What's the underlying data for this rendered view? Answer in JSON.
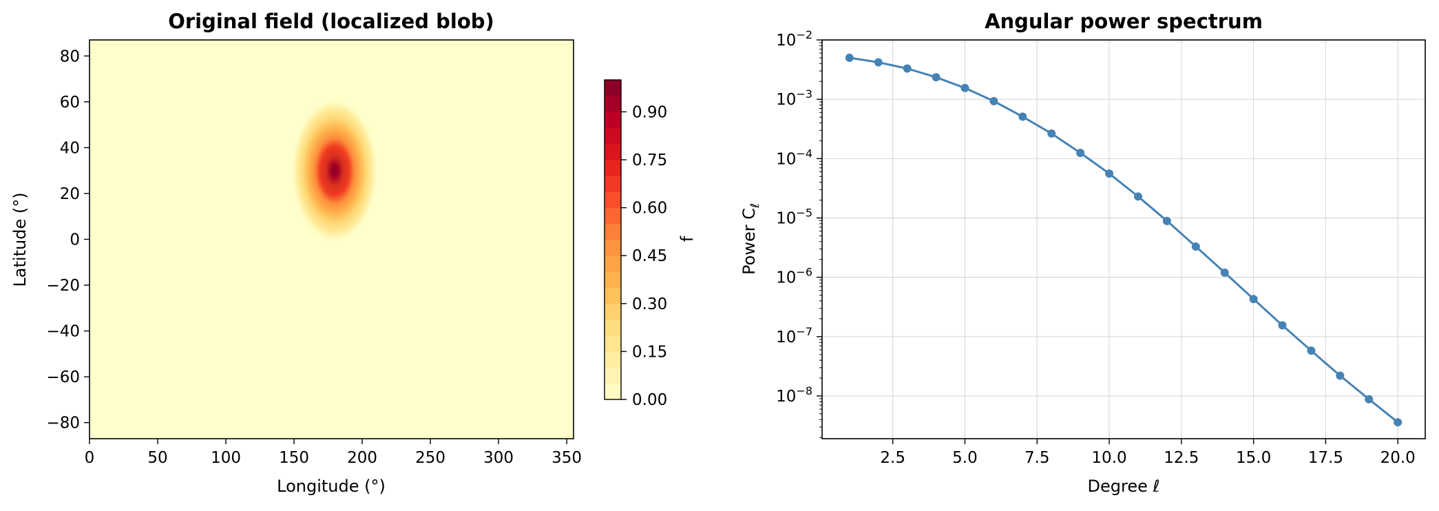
{
  "chart_data": [
    {
      "type": "heatmap",
      "title": "Original field (localized blob)",
      "xlabel": "Longitude (°)",
      "ylabel": "Latitude (°)",
      "xlim": [
        0,
        355
      ],
      "ylim": [
        -87,
        87
      ],
      "xticks": [
        0,
        50,
        100,
        150,
        200,
        250,
        300,
        350
      ],
      "xtick_labels": [
        "0",
        "50",
        "100",
        "150",
        "200",
        "250",
        "300",
        "350"
      ],
      "yticks": [
        -80,
        -60,
        -40,
        -20,
        0,
        20,
        40,
        60,
        80
      ],
      "ytick_labels": [
        "−80",
        "−60",
        "−40",
        "−20",
        "0",
        "20",
        "40",
        "60",
        "80"
      ],
      "blob": {
        "center_lon": 180,
        "center_lat": 30,
        "peak": 1.0,
        "sigma_deg": 17,
        "description_visible": "single Gaussian blob"
      },
      "colorbar": {
        "label": "f",
        "min": 0.0,
        "max": 1.0,
        "levels": 20,
        "ticks": [
          0.0,
          0.15,
          0.3,
          0.45,
          0.6,
          0.75,
          0.9
        ],
        "tick_labels": [
          "0.00",
          "0.15",
          "0.30",
          "0.45",
          "0.60",
          "0.75",
          "0.90"
        ],
        "colormap": "YlOrRd",
        "colors": [
          "#ffffcc",
          "#ffeda0",
          "#fed976",
          "#feb24c",
          "#fd8d3c",
          "#fc4e2a",
          "#e31a1c",
          "#bd0026",
          "#800026"
        ]
      }
    },
    {
      "type": "line",
      "title": "Angular power spectrum",
      "xlabel": "Degree ℓ",
      "ylabel": "Power C",
      "ylabel_sub": "ℓ",
      "yscale": "log",
      "grid": true,
      "xlim": [
        0.05,
        20.95
      ],
      "ylim_log10": [
        -8.72,
        -2.0
      ],
      "xticks": [
        2.5,
        5.0,
        7.5,
        10.0,
        12.5,
        15.0,
        17.5,
        20.0
      ],
      "xtick_labels": [
        "2.5",
        "5.0",
        "7.5",
        "10.0",
        "12.5",
        "15.0",
        "17.5",
        "20.0"
      ],
      "yticks_exp": [
        -2,
        -3,
        -4,
        -5,
        -6,
        -7,
        -8
      ],
      "ytick_base": "10",
      "ytick_exps": [
        "−2",
        "−3",
        "−4",
        "−5",
        "−6",
        "−7",
        "−8"
      ],
      "color": "#4682b4",
      "x": [
        1,
        2,
        3,
        4,
        5,
        6,
        7,
        8,
        9,
        10,
        11,
        12,
        13,
        14,
        15,
        16,
        17,
        18,
        19,
        20
      ],
      "y": [
        0.005,
        0.0042,
        0.0033,
        0.00235,
        0.00155,
        0.00093,
        0.00051,
        0.000265,
        0.000125,
        5.6e-05,
        2.3e-05,
        8.9e-06,
        3.3e-06,
        1.2e-06,
        4.3e-07,
        1.55e-07,
        5.8e-08,
        2.2e-08,
        8.8e-09,
        3.6e-09
      ]
    }
  ]
}
